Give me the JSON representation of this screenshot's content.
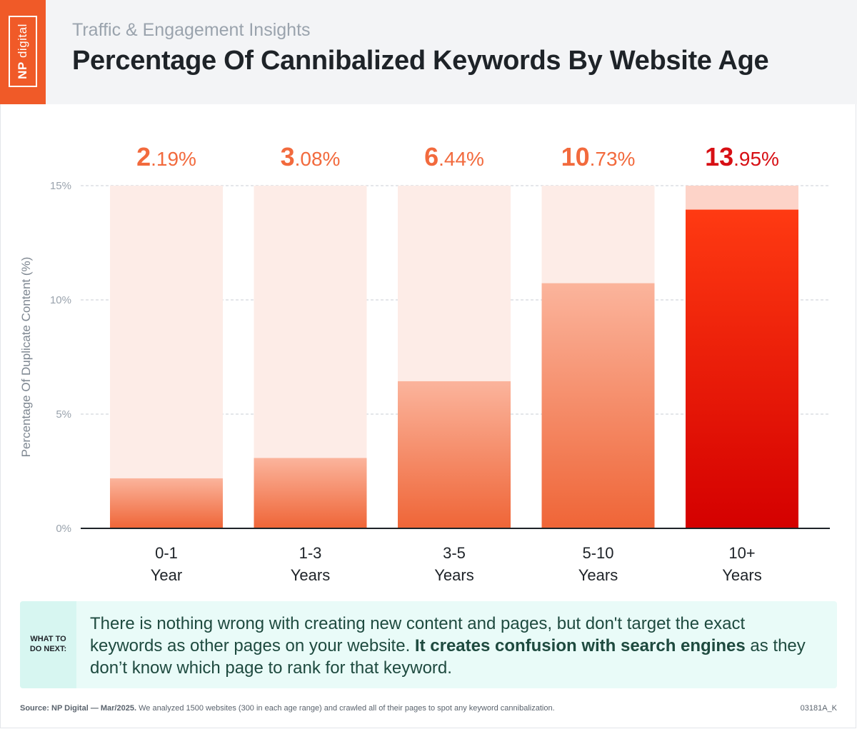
{
  "brand": {
    "logo_text_1": "NP",
    "logo_text_2": "digital",
    "accent": "#f05a28"
  },
  "header": {
    "subtitle": "Traffic & Engagement Insights",
    "title": "Percentage Of Cannibalized Keywords By Website Age"
  },
  "chart_data": {
    "type": "bar",
    "title": "Percentage Of Cannibalized Keywords By Website Age",
    "ylabel": "Percentage Of Duplicate Content (%)",
    "xlabel": "",
    "ylim": [
      0,
      15
    ],
    "yticks": [
      0,
      5,
      10,
      15
    ],
    "ytick_labels": [
      "0%",
      "5%",
      "10%",
      "15%"
    ],
    "grid": true,
    "categories": [
      [
        "0-1",
        "Year"
      ],
      [
        "1-3",
        "Years"
      ],
      [
        "3-5",
        "Years"
      ],
      [
        "5-10",
        "Years"
      ],
      [
        "10+",
        "Years"
      ]
    ],
    "values": [
      2.19,
      3.08,
      6.44,
      10.73,
      13.95
    ],
    "value_labels": [
      {
        "big": "2",
        "small": ".19%"
      },
      {
        "big": "3",
        "small": ".08%"
      },
      {
        "big": "6",
        "small": ".44%"
      },
      {
        "big": "10",
        "small": ".73%"
      },
      {
        "big": "13",
        "small": ".95%"
      }
    ],
    "colors": {
      "bar_track": "#fdece7",
      "bar_track_highlight": "#fdd3c8",
      "bar_top": "#fbb49c",
      "bar_bottom": "#ef6537",
      "highlight_top": "#ff3a12",
      "highlight_bottom": "#d40000",
      "label": "#f26a3d",
      "label_highlight": "#d70f14"
    },
    "highlight_index": 4
  },
  "note": {
    "label_line1": "WHAT TO",
    "label_line2": "DO NEXT:",
    "text_part1": "There is nothing wrong with creating new content and pages, but don't target the exact keywords as other pages on your website. ",
    "text_bold": "It creates confusion with search engines",
    "text_part2": " as they don’t know which page to rank for that keyword."
  },
  "footer": {
    "source_bold": "Source: NP Digital — Mar/2025.",
    "source_text": " We analyzed 1500 websites (300 in each age range) and crawled all of their pages to spot any keyword cannibalization.",
    "code": "03181A_K"
  }
}
